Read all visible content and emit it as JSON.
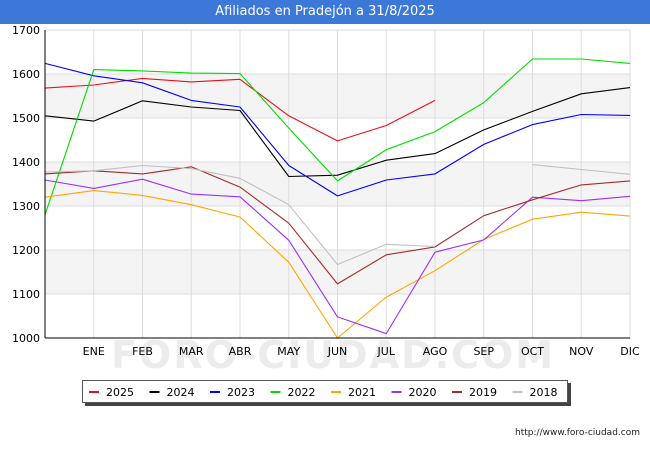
{
  "header": {
    "title": "Afiliados en Pradejón a 31/8/2025"
  },
  "footer": {
    "url": "http://www.foro-ciudad.com"
  },
  "watermark": "FORO-CIUDAD.COM",
  "chart_data": {
    "type": "line",
    "title": "Afiliados en Pradejón a 31/8/2025",
    "xlabel": "",
    "ylabel": "",
    "ylim": [
      1000,
      1700
    ],
    "yticks": [
      1000,
      1100,
      1200,
      1300,
      1400,
      1500,
      1600,
      1700
    ],
    "grid": true,
    "legend_position": "bottom",
    "categories": [
      "",
      "ENE",
      "FEB",
      "MAR",
      "ABR",
      "MAY",
      "JUN",
      "JUL",
      "AGO",
      "SEP",
      "OCT",
      "NOV",
      "DIC"
    ],
    "series": [
      {
        "name": "2025",
        "color": "#e8101a",
        "values": [
          1568,
          1575,
          1590,
          1582,
          1588,
          1505,
          1448,
          1483,
          1540,
          null,
          null,
          null,
          null
        ]
      },
      {
        "name": "2024",
        "color": "#000000",
        "values": [
          1505,
          1493,
          1539,
          1525,
          1517,
          1367,
          1370,
          1404,
          1419,
          1473,
          1515,
          1555,
          1569
        ]
      },
      {
        "name": "2023",
        "color": "#0000ff",
        "values": [
          1624,
          1596,
          1580,
          1540,
          1525,
          1392,
          1323,
          1359,
          1373,
          1440,
          1485,
          1508,
          1506
        ]
      },
      {
        "name": "2022",
        "color": "#00dd00",
        "values": [
          1280,
          1610,
          1607,
          1602,
          1601,
          1477,
          1357,
          1428,
          1469,
          1535,
          1634,
          1634,
          1624
        ]
      },
      {
        "name": "2021",
        "color": "#ffa500",
        "values": [
          1320,
          1335,
          1324,
          1303,
          1275,
          1172,
          1000,
          1093,
          1153,
          1224,
          1270,
          1286,
          1277
        ]
      },
      {
        "name": "2020",
        "color": "#9b30ff",
        "values": [
          1359,
          1340,
          1361,
          1327,
          1321,
          1222,
          1048,
          1010,
          1195,
          1223,
          1320,
          1312,
          1322
        ]
      },
      {
        "name": "2019",
        "color": "#a52a2a",
        "values": [
          1373,
          1380,
          1373,
          1389,
          1343,
          1261,
          1123,
          1189,
          1207,
          1278,
          1314,
          1348,
          1357
        ]
      },
      {
        "name": "2018",
        "color": "#c0c0c0",
        "values": [
          1377,
          1380,
          1392,
          1385,
          1363,
          1303,
          1167,
          1213,
          1208,
          null,
          1394,
          1383,
          1372
        ]
      }
    ]
  }
}
